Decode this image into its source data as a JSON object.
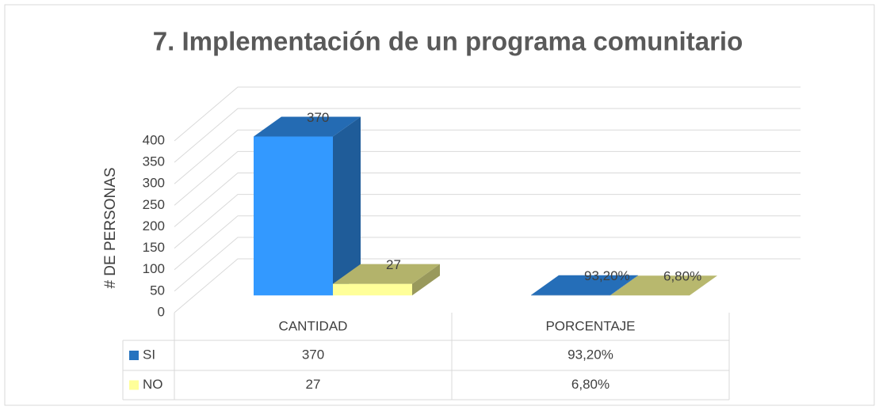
{
  "chart_data": {
    "type": "bar3d",
    "title": "7. Implementación de un programa comunitario",
    "y_label": "# DE PERSONAS",
    "categories": [
      "CANTIDAD",
      "PORCENTAJE"
    ],
    "series": [
      {
        "name": "SI",
        "color": "#3399ff",
        "values": [
          370,
          0.932
        ],
        "value_labels": [
          "370",
          "93,20%"
        ]
      },
      {
        "name": "NO",
        "color": "#ffff99",
        "values": [
          27,
          0.068
        ],
        "value_labels": [
          "27",
          "6,80%"
        ]
      }
    ],
    "ylim": [
      0,
      400
    ],
    "yticks": [
      0,
      50,
      100,
      150,
      200,
      250,
      300,
      350,
      400
    ],
    "grid": true
  }
}
